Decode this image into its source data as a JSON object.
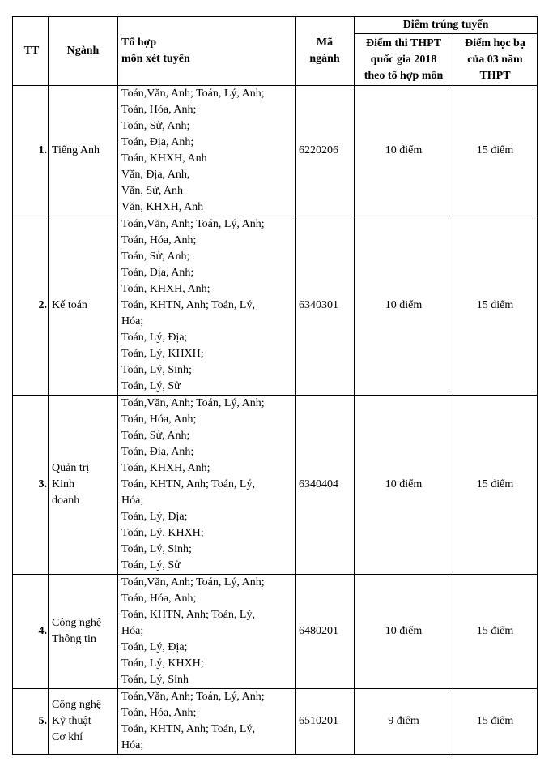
{
  "header": {
    "tt": "TT",
    "nganh": "Ngành",
    "to_hop": [
      "Tổ hợp",
      "môn xét tuyển"
    ],
    "ma_nganh": [
      "Mã",
      "ngành"
    ],
    "diem_trung_tuyen": "Điểm trúng tuyển",
    "diem_thpt": [
      "Điểm thi THPT",
      "quốc gia 2018",
      "theo tổ hợp môn"
    ],
    "diem_hoc_ba": [
      "Điểm học bạ",
      "của 03 năm",
      "THPT"
    ]
  },
  "rows": [
    {
      "tt": "1.",
      "nganh": [
        "Tiếng Anh"
      ],
      "to_hop": [
        "Toán,Văn, Anh; Toán, Lý, Anh;",
        "Toán, Hóa, Anh;",
        "Toán, Sử, Anh;",
        "Toán, Địa, Anh;",
        "Toán, KHXH, Anh",
        "Văn, Địa, Anh,",
        "Văn, Sử, Anh",
        "Văn, KHXH, Anh"
      ],
      "ma": "6220206",
      "diem_thpt": "10 điểm",
      "diem_hoc_ba": "15 điểm"
    },
    {
      "tt": "2.",
      "nganh": [
        "Kế toán"
      ],
      "to_hop": [
        "Toán,Văn, Anh; Toán, Lý, Anh;",
        "Toán, Hóa, Anh;",
        "Toán, Sử, Anh;",
        "Toán, Địa, Anh;",
        "Toán, KHXH, Anh;",
        "Toán, KHTN, Anh; Toán, Lý,",
        "Hóa;",
        "Toán, Lý, Địa;",
        "Toán, Lý, KHXH;",
        "Toán, Lý, Sinh;",
        "Toán, Lý, Sử"
      ],
      "ma": "6340301",
      "diem_thpt": "10 điểm",
      "diem_hoc_ba": "15 điểm"
    },
    {
      "tt": "3.",
      "nganh": [
        "Quản trị",
        "Kinh",
        "doanh"
      ],
      "to_hop": [
        "Toán,Văn, Anh; Toán, Lý, Anh;",
        "Toán, Hóa, Anh;",
        "Toán, Sử, Anh;",
        "Toán, Địa, Anh;",
        "Toán, KHXH, Anh;",
        "Toán, KHTN, Anh; Toán, Lý,",
        "Hóa;",
        "Toán, Lý, Địa;",
        "Toán, Lý, KHXH;",
        "Toán, Lý, Sinh;",
        "Toán, Lý, Sử"
      ],
      "ma": "6340404",
      "diem_thpt": "10 điểm",
      "diem_hoc_ba": "15 điểm"
    },
    {
      "tt": "4.",
      "nganh": [
        "Công nghệ",
        "Thông tin"
      ],
      "to_hop": [
        "Toán,Văn, Anh; Toán, Lý, Anh;",
        "Toán, Hóa, Anh;",
        "Toán, KHTN, Anh; Toán, Lý,",
        "Hóa;",
        "Toán, Lý, Địa;",
        "Toán, Lý, KHXH;",
        "Toán, Lý, Sinh"
      ],
      "ma": "6480201",
      "diem_thpt": "10 điểm",
      "diem_hoc_ba": "15 điểm"
    },
    {
      "tt": "5.",
      "nganh": [
        "Công nghệ",
        "Kỹ thuật",
        "Cơ khí"
      ],
      "to_hop": [
        "Toán,Văn, Anh; Toán, Lý, Anh;",
        "Toán, Hóa, Anh;",
        "Toán, KHTN, Anh; Toán, Lý,",
        "Hóa;"
      ],
      "ma": "6510201",
      "diem_thpt": "9 điểm",
      "diem_hoc_ba": "15 điểm"
    }
  ]
}
